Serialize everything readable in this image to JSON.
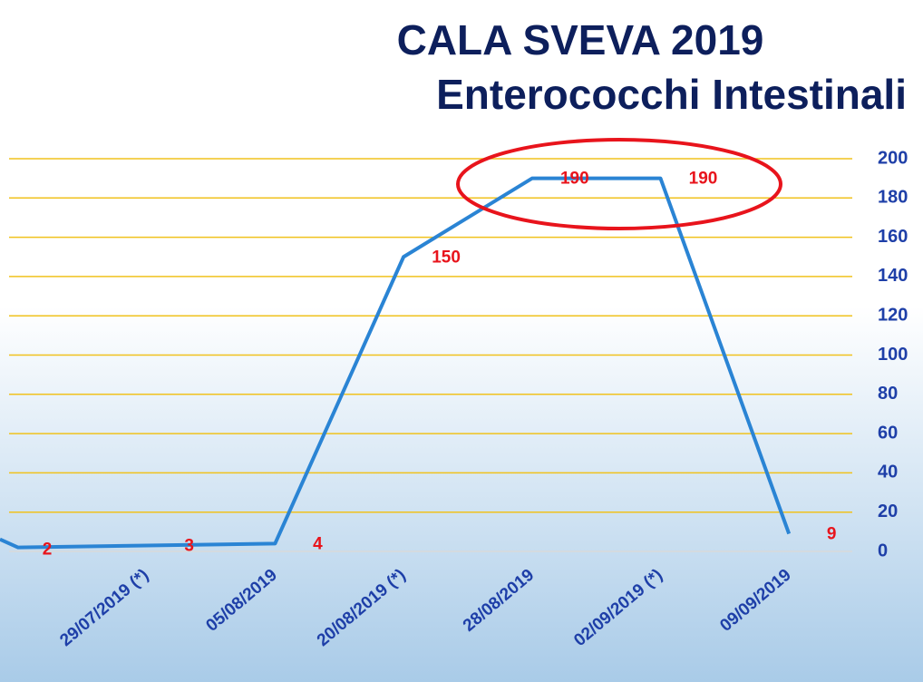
{
  "chart_data": {
    "type": "line",
    "title": [
      "CALA SVEVA 2019",
      "Enterococchi Intestinali"
    ],
    "categories": [
      "29/07/2019 (*)",
      "05/08/2019",
      "20/08/2019 (*)",
      "28/08/2019",
      "02/09/2019 (*)",
      "09/09/2019"
    ],
    "first_value": 2,
    "values": [
      3,
      4,
      150,
      190,
      190,
      9
    ],
    "color": "#2a84d4",
    "ylim": [
      0,
      200
    ],
    "yticks": [
      0,
      20,
      40,
      60,
      80,
      100,
      120,
      140,
      160,
      180,
      200
    ],
    "grid": true
  }
}
